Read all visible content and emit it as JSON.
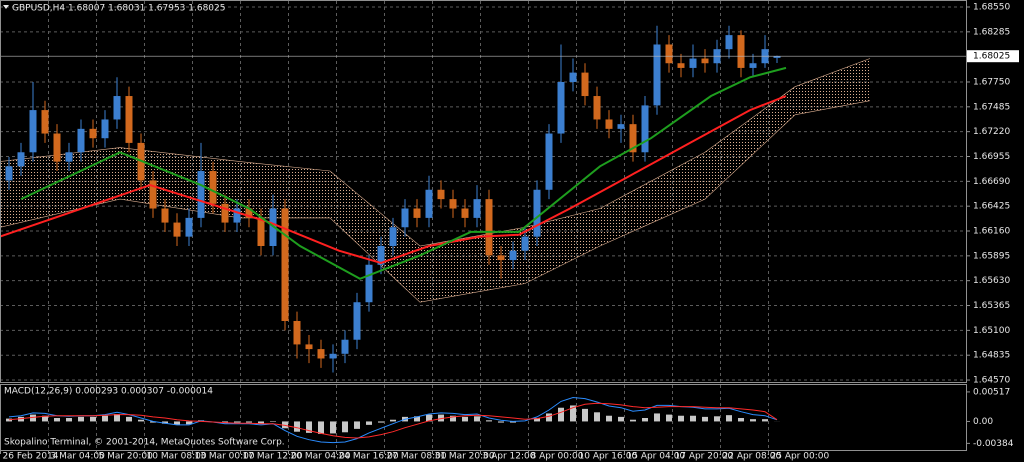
{
  "chart_data": [
    {
      "type": "candlestick",
      "title": "GBPUSD,H4  1.68007 1.68031 1.67953 1.68025",
      "price_label": 1.68025,
      "up_color": "#3c7fd0",
      "down_color": "#d2691e",
      "xlim": [
        0,
        322
      ],
      "ylim": [
        1.64549,
        1.68614
      ],
      "grid": true,
      "yticks": [
        {
          "value": 1.6855,
          "label": "1.68550"
        },
        1.68285,
        {
          "value": 1.6775,
          "label": "1.67750"
        },
        1.67485,
        {
          "value": 1.6722,
          "label": "1.67220"
        },
        1.66955,
        {
          "value": 1.6669,
          "label": "1.66690"
        },
        1.66425,
        {
          "value": 1.6616,
          "label": "1.66160"
        },
        1.65895,
        {
          "value": 1.6563,
          "label": "1.65630"
        },
        1.65365,
        {
          "value": 1.651,
          "label": "1.65100"
        },
        1.64835,
        {
          "value": 1.6457,
          "label": "1.64570"
        }
      ],
      "xticks": [
        {
          "value": 0,
          "label": "26 Feb 2014"
        },
        {
          "value": 16,
          "label": "3 Mar 04:00"
        },
        {
          "value": 32,
          "label": "5 Mar 20:00"
        },
        {
          "value": 48,
          "label": "10 Mar 08:00"
        },
        {
          "value": 64,
          "label": "13 Mar 00:00"
        },
        {
          "value": 80,
          "label": "17 Mar 12:00"
        },
        {
          "value": 96,
          "label": "20 Mar 04:00"
        },
        {
          "value": 112,
          "label": "24 Mar 16:00"
        },
        {
          "value": 128,
          "label": "27 Mar 08:00"
        },
        {
          "value": 144,
          "label": "31 Mar 20:00"
        },
        {
          "value": 160,
          "label": "3 Apr 12:00"
        },
        {
          "value": 176,
          "label": "8 Apr 00:00"
        },
        {
          "value": 192,
          "label": "10 Apr 16:00"
        },
        {
          "value": 208,
          "label": "15 Apr 04:00"
        },
        {
          "value": 224,
          "label": "17 Apr 20:00"
        },
        {
          "value": 240,
          "label": "22 Apr 08:00"
        },
        {
          "value": 256,
          "label": "25 Apr 00:00"
        }
      ],
      "x": [
        3,
        7,
        11,
        15,
        19,
        23,
        27,
        31,
        35,
        39,
        43,
        47,
        51,
        55,
        59,
        63,
        67,
        71,
        75,
        79,
        83,
        87,
        91,
        95,
        99,
        103,
        107,
        111,
        115,
        119,
        123,
        127,
        131,
        135,
        139,
        143,
        147,
        151,
        155,
        159,
        163,
        167,
        171,
        175,
        179,
        183,
        187,
        191,
        195,
        199,
        203,
        207,
        211,
        215,
        219,
        223,
        227,
        231,
        235,
        239,
        243,
        247,
        251,
        255,
        259
      ],
      "open": [
        1.667,
        1.6685,
        1.67,
        1.6745,
        1.672,
        1.669,
        1.67,
        1.6725,
        1.6715,
        1.6735,
        1.676,
        1.671,
        1.667,
        1.664,
        1.6625,
        1.661,
        1.663,
        1.668,
        1.6645,
        1.6625,
        1.664,
        1.663,
        1.66,
        1.664,
        1.652,
        1.6495,
        1.649,
        1.648,
        1.6485,
        1.65,
        1.654,
        1.658,
        1.66,
        1.662,
        1.664,
        1.663,
        1.666,
        1.665,
        1.664,
        1.663,
        1.665,
        1.659,
        1.6585,
        1.6595,
        1.661,
        1.666,
        1.672,
        1.6775,
        1.6785,
        1.676,
        1.6735,
        1.6725,
        1.673,
        1.67,
        1.675,
        1.6815,
        1.6795,
        1.679,
        1.68,
        1.6795,
        1.681,
        1.6825,
        1.679,
        1.6795,
        1.68007
      ],
      "high": [
        1.6695,
        1.671,
        1.6775,
        1.6755,
        1.673,
        1.671,
        1.6735,
        1.6735,
        1.6745,
        1.678,
        1.677,
        1.672,
        1.668,
        1.665,
        1.6635,
        1.664,
        1.671,
        1.669,
        1.6655,
        1.665,
        1.665,
        1.664,
        1.6655,
        1.665,
        1.653,
        1.6505,
        1.65,
        1.6495,
        1.651,
        1.655,
        1.659,
        1.661,
        1.663,
        1.665,
        1.665,
        1.6675,
        1.667,
        1.666,
        1.665,
        1.6665,
        1.666,
        1.66,
        1.6605,
        1.662,
        1.667,
        1.673,
        1.6815,
        1.68,
        1.6795,
        1.677,
        1.6745,
        1.674,
        1.674,
        1.676,
        1.6835,
        1.6825,
        1.6805,
        1.6815,
        1.681,
        1.682,
        1.6835,
        1.683,
        1.6805,
        1.6825,
        1.68031
      ],
      "low": [
        1.666,
        1.6675,
        1.669,
        1.671,
        1.668,
        1.668,
        1.669,
        1.6705,
        1.6705,
        1.6725,
        1.67,
        1.666,
        1.663,
        1.6615,
        1.66,
        1.66,
        1.662,
        1.6635,
        1.6615,
        1.6615,
        1.662,
        1.659,
        1.659,
        1.651,
        1.648,
        1.6475,
        1.647,
        1.6465,
        1.6475,
        1.649,
        1.653,
        1.657,
        1.659,
        1.661,
        1.662,
        1.662,
        1.664,
        1.663,
        1.662,
        1.662,
        1.658,
        1.6565,
        1.6575,
        1.6585,
        1.66,
        1.665,
        1.671,
        1.6765,
        1.675,
        1.6725,
        1.6715,
        1.671,
        1.669,
        1.669,
        1.674,
        1.6785,
        1.678,
        1.678,
        1.6785,
        1.6785,
        1.68,
        1.678,
        1.678,
        1.679,
        1.67953
      ],
      "close": [
        1.6685,
        1.67,
        1.6745,
        1.672,
        1.669,
        1.67,
        1.6725,
        1.6715,
        1.6735,
        1.676,
        1.671,
        1.667,
        1.664,
        1.6625,
        1.661,
        1.663,
        1.668,
        1.6645,
        1.6625,
        1.664,
        1.663,
        1.66,
        1.664,
        1.652,
        1.6495,
        1.649,
        1.648,
        1.6485,
        1.65,
        1.654,
        1.658,
        1.66,
        1.662,
        1.664,
        1.663,
        1.666,
        1.665,
        1.664,
        1.663,
        1.665,
        1.659,
        1.6585,
        1.6595,
        1.661,
        1.666,
        1.672,
        1.6775,
        1.6785,
        1.676,
        1.6735,
        1.6725,
        1.673,
        1.67,
        1.675,
        1.6815,
        1.6795,
        1.679,
        1.68,
        1.6795,
        1.681,
        1.6825,
        1.679,
        1.6795,
        1.681,
        1.68025
      ],
      "cloud": {
        "color": "#dcae90",
        "x": [
          0,
          40,
          80,
          110,
          140,
          175,
          200,
          235,
          265,
          290
        ],
        "span_a": [
          1.669,
          1.6705,
          1.669,
          1.668,
          1.66,
          1.662,
          1.664,
          1.67,
          1.677,
          1.68
        ],
        "span_b": [
          1.662,
          1.665,
          1.663,
          1.663,
          1.654,
          1.656,
          1.66,
          1.665,
          1.674,
          1.6755
        ]
      },
      "series": [
        {
          "color": "#ff2020",
          "x": [
            0,
            50,
            90,
            113,
            127,
            143,
            160,
            173,
            190,
            210,
            230,
            250,
            262
          ],
          "values": [
            1.661,
            1.6665,
            1.6625,
            1.6595,
            1.6582,
            1.66,
            1.661,
            1.6612,
            1.664,
            1.6675,
            1.671,
            1.6745,
            1.676
          ]
        },
        {
          "color": "#1e9e1e",
          "x": [
            7,
            40,
            67,
            83,
            100,
            120,
            140,
            157,
            173,
            200,
            217,
            237,
            250,
            262
          ],
          "values": [
            1.665,
            1.67,
            1.6665,
            1.664,
            1.66,
            1.6565,
            1.659,
            1.6615,
            1.6615,
            1.6685,
            1.6715,
            1.676,
            1.678,
            1.679
          ]
        }
      ]
    },
    {
      "type": "macd",
      "title": "MACD(12,26,9) 0.000293 0.000307 -0.000014",
      "xlim": [
        0,
        322
      ],
      "ylim": [
        -0.005,
        0.00638
      ],
      "yticks": [
        0.00517,
        {
          "value": 0,
          "label": "0.00"
        },
        -0.00384
      ],
      "x": [
        3,
        7,
        11,
        15,
        19,
        23,
        27,
        31,
        35,
        39,
        43,
        47,
        51,
        55,
        59,
        63,
        67,
        71,
        75,
        79,
        83,
        87,
        91,
        95,
        99,
        103,
        107,
        111,
        115,
        119,
        123,
        127,
        131,
        135,
        139,
        143,
        147,
        151,
        155,
        159,
        163,
        167,
        171,
        175,
        179,
        183,
        187,
        191,
        195,
        199,
        203,
        207,
        211,
        215,
        219,
        223,
        227,
        231,
        235,
        239,
        243,
        247,
        251,
        255,
        259
      ],
      "histogram": {
        "color": "#c8c8c8",
        "values": [
          0.0005,
          0.0008,
          0.0012,
          0.001,
          0.0006,
          0.0006,
          0.0008,
          0.0008,
          0.001,
          0.0013,
          0.0008,
          0.0003,
          -0.0002,
          -0.0004,
          -0.0006,
          -0.0005,
          0.0002,
          0.0,
          -0.0003,
          -0.0002,
          -0.0002,
          -0.0004,
          -0.0001,
          -0.0012,
          -0.0018,
          -0.002,
          -0.0022,
          -0.0021,
          -0.0019,
          -0.0013,
          -0.0006,
          -0.0002,
          0.0003,
          0.0008,
          0.0009,
          0.0012,
          0.0012,
          0.001,
          0.0008,
          0.0009,
          0.0002,
          -0.0002,
          -0.0002,
          0.0,
          0.0006,
          0.0014,
          0.0024,
          0.0028,
          0.0022,
          0.0016,
          0.001,
          0.0008,
          0.0003,
          0.0006,
          0.0014,
          0.0012,
          0.001,
          0.001,
          0.0008,
          0.0009,
          0.0011,
          0.0006,
          0.0004,
          0.0004,
          -1.4e-05
        ]
      },
      "series": [
        {
          "color": "#2a8cff",
          "values": [
            0.0008,
            0.001,
            0.0015,
            0.0014,
            0.001,
            0.0009,
            0.001,
            0.001,
            0.0012,
            0.0016,
            0.0012,
            0.0006,
            0.0,
            -0.0003,
            -0.0006,
            -0.0006,
            0.0001,
            -0.0001,
            -0.0004,
            -0.0004,
            -0.0004,
            -0.0006,
            -0.0004,
            -0.0016,
            -0.0026,
            -0.0032,
            -0.0036,
            -0.0037,
            -0.0036,
            -0.003,
            -0.002,
            -0.0012,
            -0.0004,
            0.0004,
            0.0008,
            0.0013,
            0.0015,
            0.0014,
            0.0012,
            0.0013,
            0.0006,
            0.0002,
            0.0,
            0.0001,
            0.0008,
            0.002,
            0.0035,
            0.0042,
            0.004,
            0.0034,
            0.0027,
            0.0024,
            0.0018,
            0.002,
            0.0028,
            0.0028,
            0.0026,
            0.0025,
            0.0022,
            0.0022,
            0.0023,
            0.0017,
            0.0012,
            0.001,
            0.000293
          ]
        },
        {
          "color": "#ff2a2a",
          "values": [
            0.0003,
            0.0005,
            0.0007,
            0.0009,
            0.001,
            0.001,
            0.001,
            0.001,
            0.0011,
            0.0012,
            0.0012,
            0.0011,
            0.0008,
            0.0006,
            0.0003,
            0.0001,
            0.0,
            -0.0001,
            -0.0002,
            -0.0003,
            -0.0003,
            -0.0004,
            -0.0004,
            -0.0007,
            -0.0011,
            -0.0016,
            -0.0021,
            -0.0025,
            -0.0028,
            -0.0029,
            -0.0027,
            -0.0023,
            -0.0018,
            -0.0011,
            -0.0005,
            0.0001,
            0.0005,
            0.0008,
            0.001,
            0.0011,
            0.001,
            0.0008,
            0.0006,
            0.0004,
            0.0005,
            0.0009,
            0.0016,
            0.0024,
            0.003,
            0.0032,
            0.0031,
            0.0029,
            0.0026,
            0.0024,
            0.0025,
            0.0026,
            0.0026,
            0.0026,
            0.0025,
            0.0024,
            0.0024,
            0.0022,
            0.002,
            0.0017,
            0.000307
          ]
        }
      ]
    }
  ],
  "footer": "Skopalino Terminal, © 2001-2014, MetaQuotes Software Corp."
}
